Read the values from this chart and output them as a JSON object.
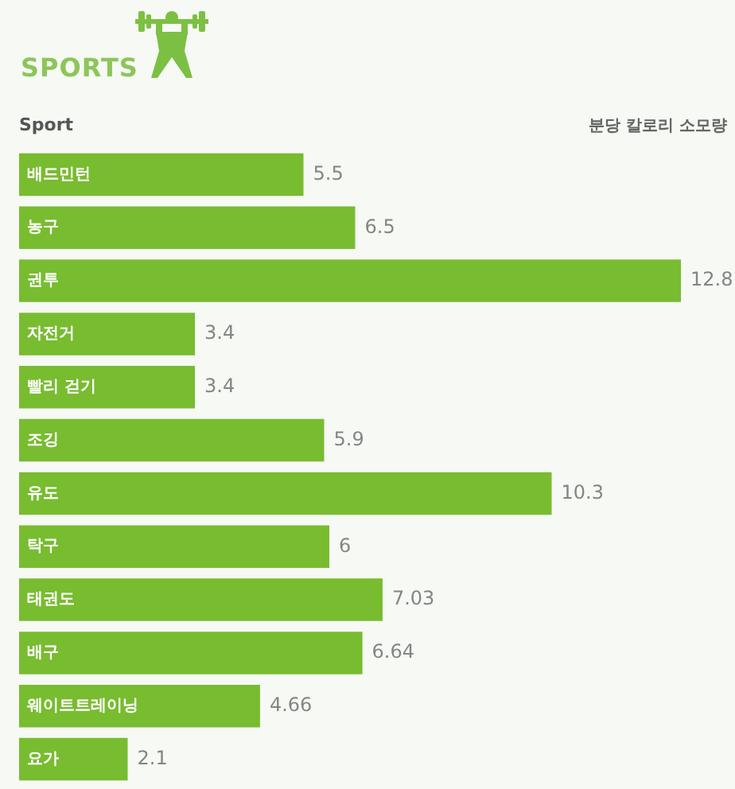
{
  "chart_data": {
    "type": "bar",
    "orientation": "horizontal",
    "title": "SPORTS",
    "ylabel": "Sport",
    "xlabel": "분당 칼로리 소모량",
    "categories": [
      "배드민턴",
      "농구",
      "권투",
      "자전거",
      "빨리 걷기",
      "조깅",
      "유도",
      "탁구",
      "태권도",
      "배구",
      "웨이트트레이닝",
      "요가"
    ],
    "values": [
      5.5,
      6.5,
      12.8,
      3.4,
      3.4,
      5.9,
      10.3,
      6,
      7.03,
      6.64,
      4.66,
      2.1
    ],
    "color": "#78bc30",
    "data_labels": true,
    "tick_labels": "y"
  }
}
